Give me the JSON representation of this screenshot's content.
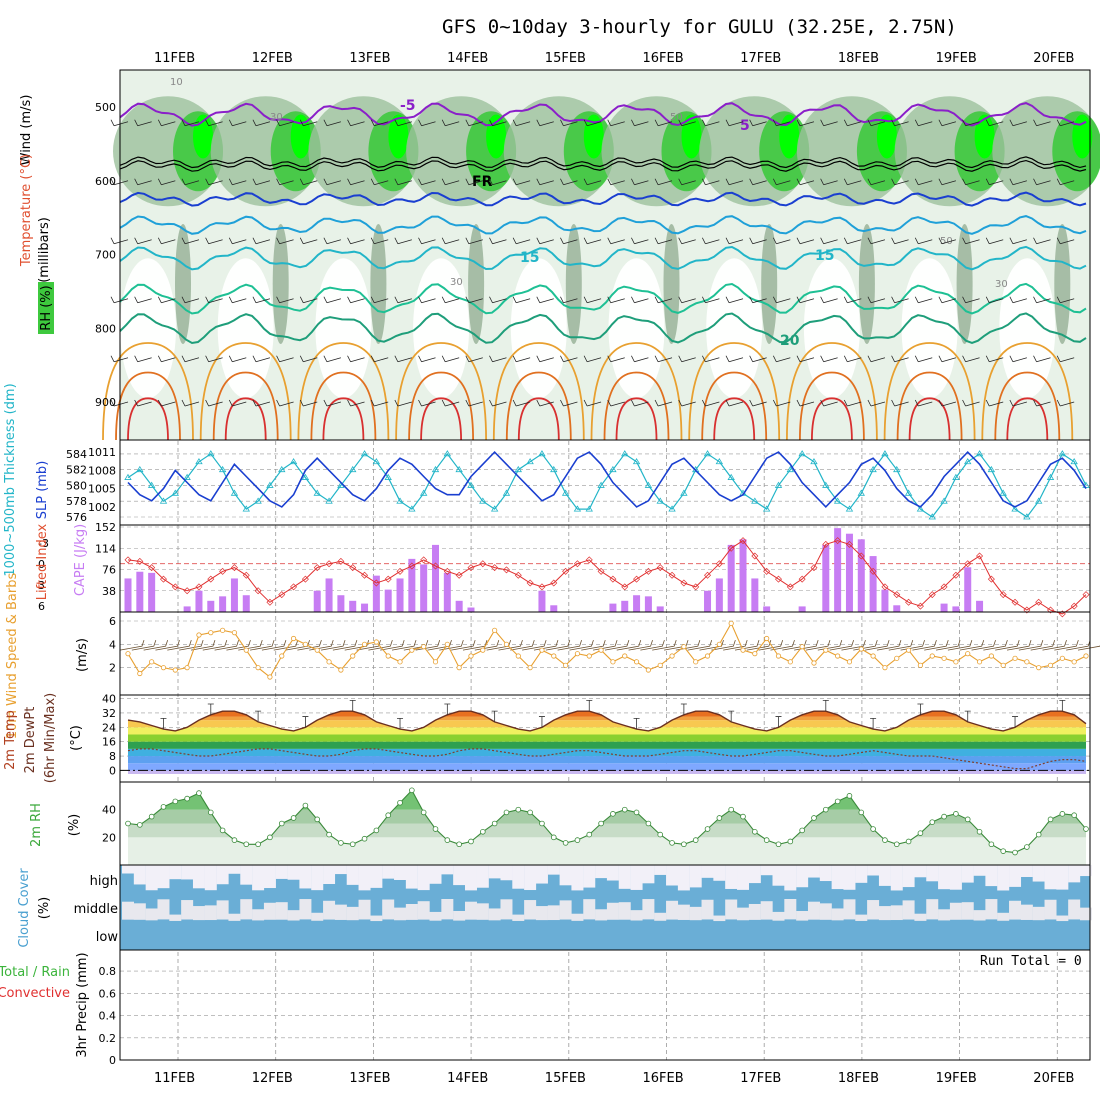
{
  "title": "GFS 0~10day 3-hourly for GULU (32.25E, 2.75N)",
  "dates": [
    "11FEB",
    "12FEB",
    "13FEB",
    "14FEB",
    "15FEB",
    "16FEB",
    "17FEB",
    "18FEB",
    "19FEB",
    "20FEB"
  ],
  "colors": {
    "grid": "#999999",
    "rh_light": "#e8f2e8",
    "rh_mid": "#9cc09c",
    "rh_dark": "#7a9a7a",
    "rh_green": "#3ec93e",
    "rh_bright": "#00ff00",
    "cloud": "#6aaed6",
    "cape": "#c77df3",
    "lifted": "#e03030",
    "wind": "#e8a030",
    "slp": "#1a3fd0",
    "thick": "#22b5c8",
    "rh2m": "#3ca83c"
  },
  "panels": {
    "upper": {
      "ylabel_wind": "Wind (m/s)",
      "ylabel_temp": "Temperature (°C)",
      "ylabel_rh": "RH (%)",
      "ylabel_mb": "(millibars)",
      "yticks": [
        "500",
        "600",
        "700",
        "800",
        "900"
      ],
      "contour_labels": [
        "-5",
        "5",
        "FR",
        "15",
        "15",
        "20",
        "10",
        "30",
        "50",
        "30",
        "50",
        "30"
      ]
    },
    "thickness": {
      "ylabel_left": "1000~500mb Thickness (dm)",
      "ylabel_right": "SLP (mb)",
      "yticks_left": [
        "584",
        "582",
        "580",
        "578",
        "576"
      ],
      "yticks_right": [
        "1011",
        "1008",
        "1005",
        "1002"
      ]
    },
    "cape": {
      "ylabel_left": "Lifted Index",
      "ylabel_right": "CAPE (J/kg)",
      "yticks_left": [
        "-3",
        "0",
        "3",
        "6"
      ],
      "yticks_right": [
        "152",
        "114",
        "76",
        "38"
      ]
    },
    "wind10m": {
      "ylabel": "10m Wind Speed & Barbs",
      "unit": "(m/s)",
      "yticks": [
        "6",
        "4",
        "2"
      ]
    },
    "temp2m": {
      "ylabel1": "2m Temp",
      "ylabel2": "2m DewPt",
      "ylabel3": "(6hr Min/Max)",
      "unit": "(°C)",
      "yticks": [
        "40",
        "32",
        "24",
        "16",
        "8",
        "0"
      ]
    },
    "rh2m": {
      "ylabel": "2m RH",
      "unit": "(%)",
      "yticks": [
        "40",
        "20"
      ]
    },
    "cloud": {
      "ylabel": "Cloud Cover",
      "unit": "(%)",
      "levels": [
        "high",
        "middle",
        "low"
      ]
    },
    "precip": {
      "ylabel1": "Total / Rain",
      "ylabel2": "Convective",
      "ylabel3": "3hr Precip (mm)",
      "yticks": [
        "0.8",
        "0.6",
        "0.4",
        "0.2",
        "0"
      ],
      "run_total": "Run Total = 0"
    }
  },
  "chart_data": {
    "type": "meteogram",
    "time_step_hours": 3,
    "slp_mb": [
      1006,
      1004,
      1003,
      1005,
      1008,
      1006,
      1004,
      1003,
      1006,
      1009,
      1007,
      1005,
      1003,
      1002,
      1004,
      1008,
      1010,
      1008,
      1006,
      1004,
      1003,
      1005,
      1008,
      1010,
      1009,
      1007,
      1005,
      1004,
      1004,
      1007,
      1009,
      1011,
      1009,
      1007,
      1005,
      1003,
      1004,
      1007,
      1010,
      1011,
      1009,
      1006,
      1004,
      1002,
      1003,
      1006,
      1009,
      1010,
      1008,
      1006,
      1004,
      1003,
      1004,
      1007,
      1010,
      1011,
      1009,
      1006,
      1004,
      1002,
      1004,
      1006,
      1009,
      1010,
      1008,
      1005,
      1003,
      1002,
      1004,
      1007,
      1009,
      1011,
      1009,
      1006,
      1003,
      1002,
      1003,
      1006,
      1009,
      1010,
      1008,
      1005
    ],
    "thickness_dm": [
      581,
      582,
      580,
      578,
      579,
      581,
      583,
      584,
      582,
      579,
      577,
      578,
      580,
      582,
      583,
      581,
      579,
      578,
      580,
      582,
      584,
      583,
      581,
      578,
      577,
      579,
      582,
      584,
      582,
      580,
      578,
      577,
      579,
      582,
      583,
      584,
      582,
      579,
      577,
      577,
      580,
      582,
      584,
      583,
      580,
      578,
      577,
      579,
      582,
      584,
      583,
      581,
      579,
      578,
      577,
      580,
      582,
      584,
      583,
      580,
      578,
      577,
      579,
      582,
      584,
      582,
      579,
      577,
      576,
      578,
      581,
      583,
      584,
      582,
      579,
      577,
      576,
      578,
      581,
      584,
      583,
      580
    ],
    "cape_jkg": [
      60,
      72,
      70,
      0,
      0,
      10,
      38,
      20,
      28,
      60,
      30,
      0,
      0,
      0,
      0,
      0,
      38,
      60,
      30,
      20,
      15,
      65,
      40,
      60,
      95,
      85,
      120,
      70,
      20,
      8,
      0,
      0,
      0,
      0,
      0,
      38,
      12,
      0,
      0,
      0,
      0,
      15,
      20,
      30,
      28,
      10,
      0,
      0,
      0,
      38,
      60,
      120,
      130,
      60,
      10,
      0,
      0,
      10,
      0,
      120,
      150,
      140,
      130,
      100,
      40,
      12,
      0,
      0,
      0,
      15,
      10,
      80,
      20,
      0,
      0,
      0,
      0,
      0,
      0,
      0,
      0,
      0
    ],
    "lifted_index": [
      -0.5,
      -0.3,
      0.5,
      2,
      3,
      3.5,
      3,
      2,
      1,
      0.5,
      1.5,
      3.5,
      5,
      4,
      3,
      2,
      0.5,
      0,
      -0.3,
      0.5,
      1.5,
      2.5,
      2,
      1,
      0.3,
      -0.5,
      0.3,
      1,
      1.5,
      0.5,
      0,
      0.5,
      0.8,
      1.5,
      2.5,
      3,
      2.5,
      1,
      0,
      -0.5,
      1,
      2,
      3,
      2,
      1,
      0.5,
      1.5,
      2.5,
      3,
      1.5,
      0,
      -2,
      -3,
      -1,
      1,
      2,
      3,
      2,
      0.5,
      -2.5,
      -3,
      -2.5,
      -1,
      1,
      3,
      4,
      5,
      5.5,
      4,
      3,
      1.5,
      0,
      -1,
      2,
      4,
      5,
      6,
      5,
      6,
      6.5,
      5.5,
      4
    ],
    "wind10m_ms": [
      3.2,
      1.5,
      2.5,
      2,
      1.8,
      2,
      4.8,
      5,
      5.2,
      5,
      3.5,
      2,
      1.2,
      3,
      4.5,
      4,
      3.5,
      2.5,
      1.8,
      3,
      4,
      4.2,
      3,
      2.5,
      3.5,
      3.8,
      2.5,
      4,
      2,
      3,
      3.5,
      5.2,
      4,
      3,
      2,
      3.5,
      3,
      2.2,
      3.2,
      3,
      3.5,
      2.5,
      3,
      2.5,
      1.8,
      2.2,
      3,
      3.8,
      2.5,
      3,
      4,
      5.8,
      3.5,
      3.2,
      4.5,
      3,
      2.5,
      3.8,
      2.4,
      3.5,
      3,
      2.5,
      3.6,
      3,
      2,
      2.8,
      3.5,
      2.2,
      3,
      2.8,
      2.5,
      3.2,
      2.5,
      3,
      2.2,
      2.8,
      2.5,
      2,
      2.2,
      2.8,
      2.5,
      3
    ],
    "temp2m_c": [
      28,
      27,
      25,
      23,
      22,
      24,
      28,
      31,
      33,
      33,
      31,
      27,
      25,
      23,
      22,
      24,
      28,
      31,
      33,
      33,
      31,
      27,
      25,
      23,
      22,
      24,
      28,
      31,
      33,
      33,
      31,
      27,
      25,
      23,
      22,
      24,
      28,
      31,
      33,
      33,
      31,
      27,
      25,
      23,
      22,
      24,
      28,
      31,
      33,
      33,
      31,
      27,
      25,
      23,
      22,
      24,
      28,
      31,
      33,
      33,
      31,
      27,
      25,
      23,
      22,
      24,
      28,
      31,
      33,
      33,
      31,
      27,
      25,
      23,
      22,
      24,
      28,
      31,
      33,
      33,
      31,
      26
    ],
    "dewpt2m_c": [
      11,
      12,
      12,
      11,
      10,
      9,
      8,
      8,
      9,
      10,
      11,
      12,
      12,
      11,
      10,
      9,
      8,
      8,
      9,
      11,
      12,
      12,
      11,
      10,
      9,
      8,
      8,
      9,
      11,
      12,
      12,
      11,
      10,
      9,
      8,
      8,
      9,
      10,
      11,
      11,
      10,
      9,
      8,
      8,
      8,
      9,
      10,
      11,
      11,
      10,
      9,
      8,
      8,
      9,
      10,
      11,
      11,
      10,
      9,
      8,
      8,
      9,
      10,
      11,
      10,
      9,
      8,
      8,
      8,
      7,
      6,
      5,
      4,
      3,
      2,
      1,
      1,
      3,
      5,
      6,
      6,
      5
    ],
    "rh2m_pct": [
      30,
      29,
      35,
      42,
      46,
      48,
      52,
      38,
      25,
      18,
      15,
      15,
      20,
      30,
      34,
      43,
      33,
      22,
      16,
      15,
      19,
      25,
      36,
      45,
      54,
      38,
      26,
      18,
      15,
      17,
      24,
      30,
      38,
      40,
      38,
      30,
      20,
      16,
      18,
      22,
      30,
      37,
      40,
      38,
      30,
      22,
      16,
      15,
      18,
      26,
      34,
      40,
      35,
      24,
      18,
      15,
      17,
      25,
      34,
      40,
      46,
      50,
      38,
      26,
      18,
      15,
      17,
      23,
      31,
      35,
      37,
      33,
      24,
      15,
      10,
      9,
      13,
      22,
      33,
      37,
      36,
      26
    ],
    "precip_mm": [
      0,
      0,
      0,
      0,
      0,
      0,
      0,
      0,
      0,
      0
    ]
  }
}
